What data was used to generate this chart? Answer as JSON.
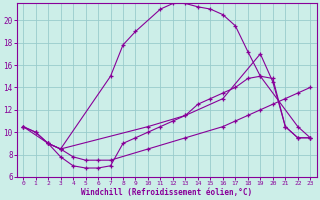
{
  "xlabel": "Windchill (Refroidissement éolien,°C)",
  "background_color": "#cceee8",
  "line_color": "#880099",
  "grid_color": "#99cccc",
  "xlim": [
    -0.5,
    23.5
  ],
  "ylim": [
    6,
    21.5
  ],
  "yticks": [
    6,
    8,
    10,
    12,
    14,
    16,
    18,
    20
  ],
  "xticks": [
    0,
    1,
    2,
    3,
    4,
    5,
    6,
    7,
    8,
    9,
    10,
    11,
    12,
    13,
    14,
    15,
    16,
    17,
    18,
    19,
    20,
    21,
    22,
    23
  ],
  "line1_x": [
    0,
    1,
    2,
    3,
    7,
    8,
    9,
    11,
    12,
    13,
    14,
    15,
    16,
    17,
    18,
    19,
    22,
    23
  ],
  "line1_y": [
    10.5,
    10.0,
    9.0,
    8.5,
    15.0,
    17.8,
    19.0,
    21.0,
    21.5,
    21.5,
    21.2,
    21.0,
    20.5,
    19.5,
    17.2,
    15.0,
    10.5,
    9.5
  ],
  "line2_x": [
    0,
    1,
    2,
    3,
    4,
    5,
    6,
    7,
    8,
    9,
    10,
    11,
    12,
    13,
    14,
    15,
    16,
    17,
    18,
    19,
    20,
    21,
    22,
    23
  ],
  "line2_y": [
    10.5,
    10.0,
    9.0,
    7.8,
    7.0,
    6.8,
    6.8,
    7.0,
    9.0,
    9.5,
    10.0,
    10.5,
    11.0,
    11.5,
    12.5,
    13.0,
    13.5,
    14.0,
    14.8,
    15.0,
    14.8,
    10.5,
    9.5,
    9.5
  ],
  "line3_x": [
    2,
    3,
    4,
    5,
    6,
    7,
    10,
    13,
    16,
    17,
    18,
    19,
    20,
    21,
    22,
    23
  ],
  "line3_y": [
    9.0,
    8.5,
    7.8,
    7.5,
    7.5,
    7.5,
    8.5,
    9.5,
    10.5,
    11.0,
    11.5,
    12.0,
    12.5,
    13.0,
    13.5,
    14.0
  ],
  "line4_x": [
    0,
    2,
    3,
    10,
    13,
    16,
    19,
    20,
    21,
    22,
    23
  ],
  "line4_y": [
    10.5,
    9.0,
    8.5,
    10.5,
    11.5,
    13.0,
    17.0,
    14.5,
    10.5,
    9.5,
    9.5
  ]
}
